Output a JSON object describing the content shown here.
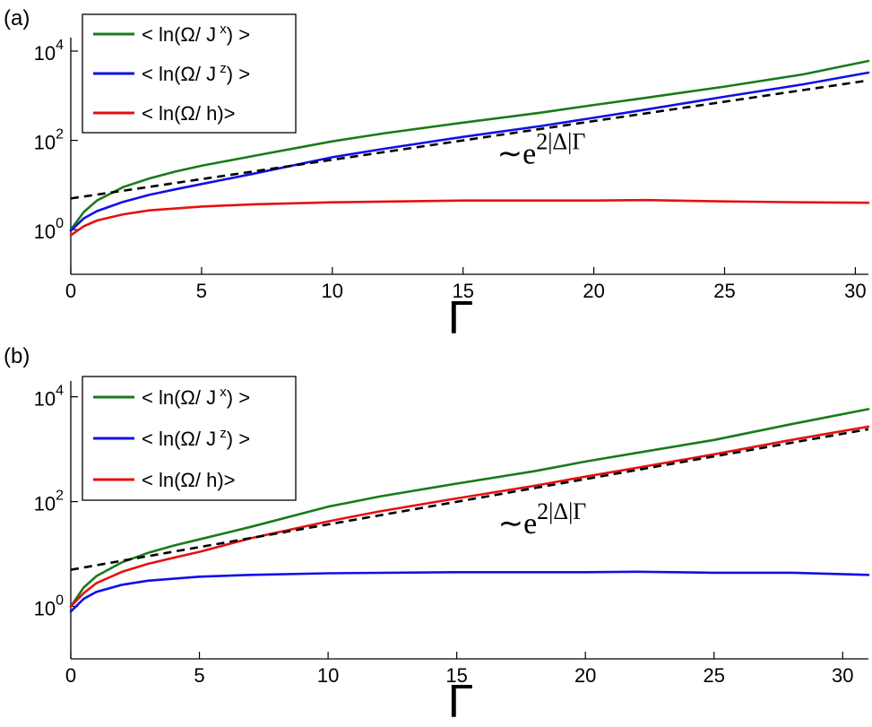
{
  "chart_data": [
    {
      "panel_label": "(a)",
      "type": "line",
      "xlabel": "Γ",
      "xlim": [
        0,
        30.5
      ],
      "ylim": [
        0.1,
        20000
      ],
      "yscale": "log",
      "xticks": [
        0,
        5,
        10,
        15,
        20,
        25,
        30
      ],
      "yticks": [
        {
          "base": "10",
          "exp": "0",
          "value": 1
        },
        {
          "base": "10",
          "exp": "2",
          "value": 100
        },
        {
          "base": "10",
          "exp": "4",
          "value": 10000
        }
      ],
      "legend_position": "top-left",
      "annotation": {
        "prefix": "∼e",
        "sup": "2|Δ|Γ",
        "x": 16.3,
        "y": 30
      },
      "series": [
        {
          "name": "< ln(Ω/ J",
          "sup": "x",
          "suffix": ") >",
          "color": "#1a7a1a",
          "x": [
            0,
            0.5,
            1,
            2,
            3,
            4,
            5,
            7,
            10,
            12,
            15,
            18,
            20,
            22,
            25,
            28,
            30.5
          ],
          "y": [
            1.0,
            2.5,
            4.5,
            9,
            14,
            20,
            27,
            45,
            95,
            145,
            250,
            420,
            620,
            900,
            1600,
            3000,
            6000
          ]
        },
        {
          "name": "< ln(Ω/ J",
          "sup": "z",
          "suffix": ") >",
          "color": "#1010e6",
          "x": [
            0,
            0.5,
            1,
            2,
            3,
            4,
            5,
            7,
            10,
            12,
            15,
            18,
            20,
            22,
            25,
            28,
            30.5
          ],
          "y": [
            0.95,
            1.8,
            2.6,
            4.2,
            6,
            8,
            10.5,
            18,
            42,
            65,
            120,
            210,
            320,
            490,
            950,
            1800,
            3300
          ]
        },
        {
          "name": "< ln(Ω/ h)>",
          "sup": "",
          "suffix": "",
          "color": "#e61010",
          "x": [
            0,
            0.5,
            1,
            2,
            3,
            5,
            7,
            10,
            15,
            20,
            22,
            25,
            28,
            30.5
          ],
          "y": [
            0.75,
            1.2,
            1.6,
            2.2,
            2.7,
            3.3,
            3.7,
            4.1,
            4.5,
            4.5,
            4.6,
            4.3,
            4.1,
            4.0
          ]
        },
        {
          "name": "",
          "style": "dashed",
          "color": "#000000",
          "x": [
            0,
            30.5
          ],
          "y": [
            5,
            2200
          ]
        }
      ]
    },
    {
      "panel_label": "(b)",
      "type": "line",
      "xlabel": "Γ",
      "xlim": [
        0,
        31
      ],
      "ylim": [
        0.1,
        20000
      ],
      "yscale": "log",
      "xticks": [
        0,
        5,
        10,
        15,
        20,
        25,
        30
      ],
      "yticks": [
        {
          "base": "10",
          "exp": "0",
          "value": 1
        },
        {
          "base": "10",
          "exp": "2",
          "value": 100
        },
        {
          "base": "10",
          "exp": "4",
          "value": 10000
        }
      ],
      "legend_position": "top-left",
      "annotation": {
        "prefix": "∼e",
        "sup": "2|Δ|Γ",
        "x": 16.6,
        "y": 25
      },
      "series": [
        {
          "name": "< ln(Ω/ J",
          "sup": "x",
          "suffix": ") >",
          "color": "#1a7a1a",
          "x": [
            0,
            0.5,
            1,
            2,
            3,
            4,
            5,
            7,
            10,
            12,
            15,
            18,
            20,
            22,
            25,
            28,
            31
          ],
          "y": [
            1.0,
            2.3,
            3.8,
            7,
            10.5,
            14.5,
            19,
            33,
            80,
            125,
            220,
            380,
            580,
            850,
            1500,
            3000,
            5800
          ]
        },
        {
          "name": "< ln(Ω/ J",
          "sup": "z",
          "suffix": ") >",
          "color": "#1010e6",
          "x": [
            0,
            0.5,
            1,
            2,
            3,
            5,
            7,
            10,
            15,
            20,
            22,
            25,
            28,
            31
          ],
          "y": [
            0.8,
            1.4,
            1.9,
            2.6,
            3.1,
            3.7,
            4.0,
            4.3,
            4.5,
            4.5,
            4.6,
            4.4,
            4.4,
            4.0
          ]
        },
        {
          "name": "< ln(Ω/ h)>",
          "sup": "",
          "suffix": "",
          "color": "#e61010",
          "x": [
            0,
            0.5,
            1,
            2,
            3,
            4,
            5,
            7,
            10,
            12,
            15,
            18,
            20,
            22,
            25,
            28,
            31
          ],
          "y": [
            1.0,
            1.8,
            2.8,
            4.6,
            6.5,
            8.5,
            11,
            20,
            42,
            65,
            115,
            200,
            300,
            440,
            800,
            1500,
            2700
          ]
        },
        {
          "name": "",
          "style": "dashed",
          "color": "#000000",
          "x": [
            0,
            31
          ],
          "y": [
            5,
            2400
          ]
        }
      ]
    }
  ]
}
